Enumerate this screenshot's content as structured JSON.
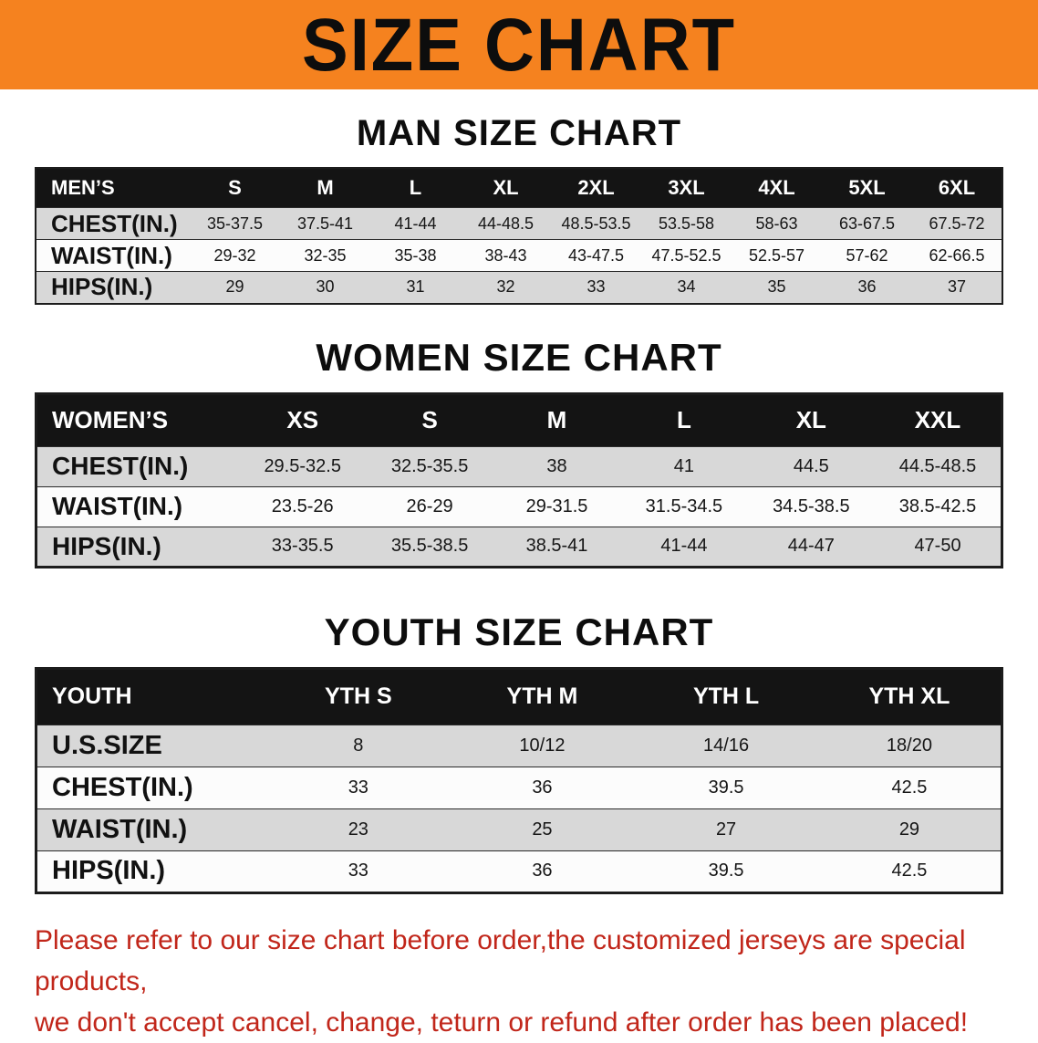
{
  "banner": {
    "title": "SIZE CHART",
    "bg": "#F5821F"
  },
  "sections": {
    "men": {
      "heading": "MAN SIZE CHART",
      "corner": "MEN’S",
      "sizes": [
        "S",
        "M",
        "L",
        "XL",
        "2XL",
        "3XL",
        "4XL",
        "5XL",
        "6XL"
      ],
      "rows": [
        {
          "label": "CHEST(IN.)",
          "values": [
            "35-37.5",
            "37.5-41",
            "41-44",
            "44-48.5",
            "48.5-53.5",
            "53.5-58",
            "58-63",
            "63-67.5",
            "67.5-72"
          ]
        },
        {
          "label": "WAIST(IN.)",
          "values": [
            "29-32",
            "32-35",
            "35-38",
            "38-43",
            "43-47.5",
            "47.5-52.5",
            "52.5-57",
            "57-62",
            "62-66.5"
          ]
        },
        {
          "label": "HIPS(IN.)",
          "values": [
            "29",
            "30",
            "31",
            "32",
            "33",
            "34",
            "35",
            "36",
            "37"
          ]
        }
      ]
    },
    "women": {
      "heading": "WOMEN SIZE CHART",
      "corner": "WOMEN’S",
      "sizes": [
        "XS",
        "S",
        "M",
        "L",
        "XL",
        "XXL"
      ],
      "rows": [
        {
          "label": "CHEST(IN.)",
          "values": [
            "29.5-32.5",
            "32.5-35.5",
            "38",
            "41",
            "44.5",
            "44.5-48.5"
          ]
        },
        {
          "label": "WAIST(IN.)",
          "values": [
            "23.5-26",
            "26-29",
            "29-31.5",
            "31.5-34.5",
            "34.5-38.5",
            "38.5-42.5"
          ]
        },
        {
          "label": "HIPS(IN.)",
          "values": [
            "33-35.5",
            "35.5-38.5",
            "38.5-41",
            "41-44",
            "44-47",
            "47-50"
          ]
        }
      ]
    },
    "youth": {
      "heading": "YOUTH SIZE CHART",
      "corner": "YOUTH",
      "sizes": [
        "YTH S",
        "YTH M",
        "YTH L",
        "YTH XL"
      ],
      "rows": [
        {
          "label": "U.S.SIZE",
          "values": [
            "8",
            "10/12",
            "14/16",
            "18/20"
          ]
        },
        {
          "label": "CHEST(IN.)",
          "values": [
            "33",
            "36",
            "39.5",
            "42.5"
          ]
        },
        {
          "label": "WAIST(IN.)",
          "values": [
            "23",
            "25",
            "27",
            "29"
          ]
        },
        {
          "label": "HIPS(IN.)",
          "values": [
            "33",
            "36",
            "39.5",
            "42.5"
          ]
        }
      ]
    }
  },
  "footer": {
    "line1": "Please refer to our size chart before order,the customized jerseys are special products,",
    "line2": "we don't accept cancel, change, teturn or refund after order has been placed!",
    "color": "#c1261a"
  }
}
